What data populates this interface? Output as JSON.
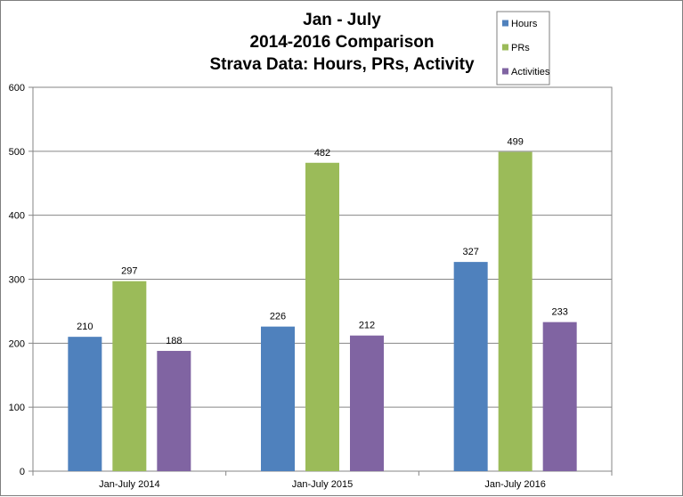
{
  "chart_data": {
    "type": "bar",
    "title_lines": [
      "Jan - July",
      "2014-2016 Comparison",
      "Strava Data: Hours, PRs, Activity"
    ],
    "categories": [
      "Jan-July 2014",
      "Jan-July 2015",
      "Jan-July 2016"
    ],
    "series": [
      {
        "name": "Hours",
        "color": "#4f81bd",
        "values": [
          210,
          226,
          327
        ]
      },
      {
        "name": "PRs",
        "color": "#9bbb59",
        "values": [
          297,
          482,
          499
        ]
      },
      {
        "name": "Activities",
        "color": "#8064a2",
        "values": [
          188,
          212,
          233
        ]
      }
    ],
    "ylim": [
      0,
      600
    ],
    "yticks": [
      0,
      100,
      200,
      300,
      400,
      500,
      600
    ],
    "grid": true,
    "legend_position": "top-right",
    "data_labels": true
  }
}
